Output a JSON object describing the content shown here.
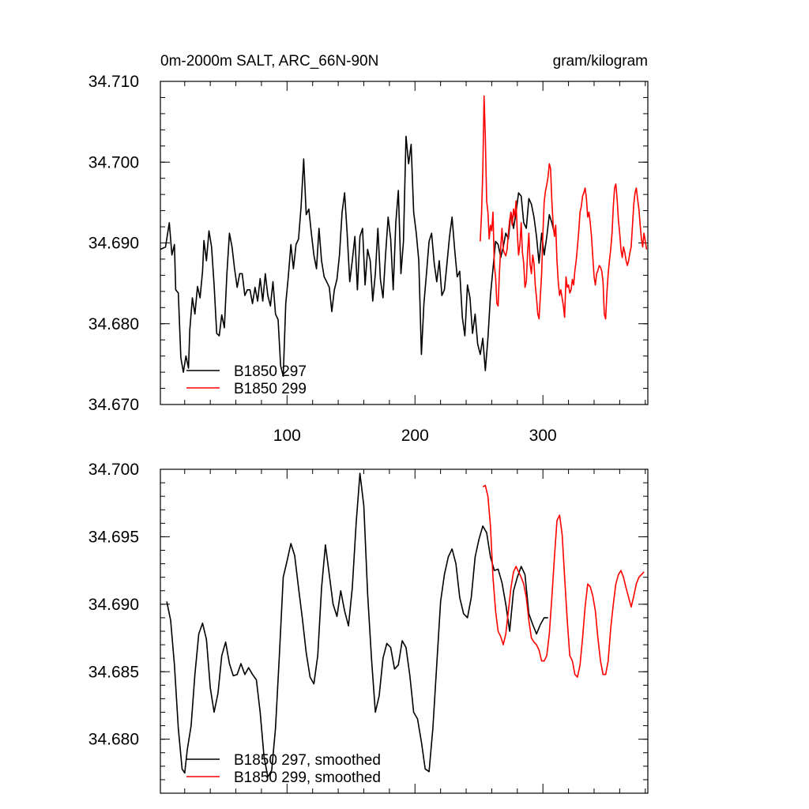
{
  "chart_data": [
    {
      "type": "line",
      "title_left": "0m-2000m SALT, ARC_66N-90N",
      "title_right": "gram/kilogram",
      "xlim": [
        1,
        382
      ],
      "ylim": [
        34.67,
        34.71
      ],
      "yticks": [
        "34.670",
        "34.680",
        "34.690",
        "34.700",
        "34.710"
      ],
      "ytick_values": [
        34.67,
        34.68,
        34.69,
        34.7,
        34.71
      ],
      "xticks": [
        "100",
        "200",
        "300"
      ],
      "xtick_values": [
        100,
        200,
        300
      ],
      "legend_position": "bottom-left",
      "series": [
        {
          "name": "B1850 297",
          "color": "#000000",
          "x": [
            1,
            5,
            8,
            10,
            12,
            13,
            15,
            17,
            19,
            21,
            23,
            24,
            26,
            28,
            30,
            32,
            34,
            35,
            37,
            39,
            41,
            43,
            45,
            47,
            49,
            51,
            53,
            55,
            57,
            59,
            61,
            63,
            65,
            67,
            69,
            71,
            73,
            75,
            77,
            79,
            81,
            83,
            85,
            87,
            89,
            91,
            93,
            95,
            97,
            99,
            101,
            103,
            105,
            107,
            109,
            111,
            113,
            115,
            117,
            119,
            121,
            123,
            125,
            127,
            129,
            131,
            133,
            135,
            137,
            139,
            141,
            143,
            145,
            147,
            149,
            151,
            153,
            155,
            157,
            159,
            161,
            163,
            165,
            167,
            169,
            171,
            173,
            175,
            177,
            179,
            181,
            183,
            185,
            187,
            189,
            191,
            193,
            195,
            197,
            199,
            201,
            203,
            205,
            207,
            209,
            211,
            213,
            215,
            217,
            219,
            221,
            223,
            225,
            227,
            229,
            231,
            233,
            235,
            237,
            239,
            241,
            243,
            245,
            247,
            249,
            251,
            253,
            255,
            257,
            259,
            261,
            263,
            265,
            267,
            269,
            271,
            273,
            275,
            277,
            279,
            281,
            283,
            285,
            287,
            289,
            291,
            293,
            295,
            297,
            299,
            301,
            303,
            305,
            307,
            309
          ],
          "values": [
            34.6892,
            34.6895,
            34.6925,
            34.6885,
            34.6898,
            34.6842,
            34.6838,
            34.6758,
            34.674,
            34.676,
            34.6745,
            34.6792,
            34.6832,
            34.6812,
            34.6846,
            34.6832,
            34.6865,
            34.6903,
            34.6878,
            34.6915,
            34.6895,
            34.6848,
            34.6788,
            34.6785,
            34.6811,
            34.6795,
            34.6862,
            34.6912,
            34.6895,
            34.6868,
            34.6845,
            34.6862,
            34.6862,
            34.6835,
            34.6842,
            34.6842,
            34.6825,
            34.6845,
            34.6828,
            34.6856,
            34.6828,
            34.6862,
            34.6835,
            34.6822,
            34.6852,
            34.6812,
            34.6805,
            34.6748,
            34.6735,
            34.6825,
            34.6858,
            34.6898,
            34.6868,
            34.6898,
            34.6905,
            34.6945,
            34.7004,
            34.6935,
            34.6942,
            34.6912,
            34.6885,
            34.6868,
            34.6918,
            34.6878,
            34.6858,
            34.6852,
            34.6845,
            34.6815,
            34.6842,
            34.6855,
            34.6885,
            34.6938,
            34.6962,
            34.6912,
            34.6852,
            34.6878,
            34.6908,
            34.6842,
            34.6908,
            34.6918,
            34.6848,
            34.6892,
            34.6878,
            34.6828,
            34.6862,
            34.6918,
            34.6855,
            34.6832,
            34.6885,
            34.6932,
            34.6905,
            34.6842,
            34.6925,
            34.6965,
            34.6862,
            34.6902,
            34.7032,
            34.6998,
            34.7022,
            34.6938,
            34.6912,
            34.6878,
            34.6762,
            34.6825,
            34.6862,
            34.6902,
            34.6912,
            34.6875,
            34.6852,
            34.6878,
            34.6835,
            34.6842,
            34.6875,
            34.6908,
            34.6932,
            34.6892,
            34.6858,
            34.6865,
            34.6808,
            34.6785,
            34.6848,
            34.6832,
            34.6788,
            34.6812,
            34.6775,
            34.6762,
            34.6782,
            34.6742,
            34.6782,
            34.6835,
            34.6868,
            34.6902,
            34.6898,
            34.6882,
            34.6895,
            34.6912,
            34.6905,
            34.6938,
            34.6918,
            34.6938,
            34.6962,
            34.6958,
            34.6925,
            34.6918,
            34.6955,
            34.6948,
            34.6932,
            34.6908,
            34.6875,
            34.6912,
            34.6885,
            34.6908,
            34.6935,
            34.6925,
            34.6912
          ]
        },
        {
          "name": "B1850 299",
          "color": "#ff0000",
          "x": [
            251,
            252,
            253,
            254,
            255,
            256,
            257,
            258,
            259,
            260,
            261,
            262,
            263,
            264,
            265,
            266,
            267,
            268,
            269,
            270,
            271,
            272,
            273,
            274,
            275,
            276,
            277,
            278,
            279,
            280,
            281,
            282,
            283,
            284,
            285,
            286,
            287,
            288,
            289,
            290,
            291,
            292,
            293,
            294,
            295,
            296,
            297,
            298,
            299,
            300,
            301,
            302,
            303,
            304,
            305,
            306,
            307,
            308,
            309,
            310,
            311,
            312,
            313,
            314,
            315,
            316,
            317,
            318,
            319,
            320,
            321,
            322,
            323,
            324,
            325,
            326,
            327,
            328,
            329,
            330,
            331,
            332,
            333,
            334,
            335,
            336,
            337,
            338,
            339,
            340,
            341,
            342,
            343,
            344,
            345,
            346,
            347,
            348,
            349,
            350,
            351,
            352,
            353,
            354,
            355,
            356,
            357,
            358,
            359,
            360,
            361,
            362,
            363,
            364,
            365,
            366,
            367,
            368,
            369,
            370,
            371,
            372,
            373,
            374,
            375,
            376,
            377,
            378,
            379,
            380,
            381
          ],
          "values": [
            34.6902,
            34.6936,
            34.6988,
            34.7082,
            34.7032,
            34.6952,
            34.6938,
            34.6905,
            34.6922,
            34.6915,
            34.6938,
            34.6872,
            34.6858,
            34.6825,
            34.6822,
            34.6862,
            34.6895,
            34.6918,
            34.6892,
            34.6887,
            34.6884,
            34.6892,
            34.6912,
            34.6928,
            34.6938,
            34.6922,
            34.6942,
            34.6932,
            34.6952,
            34.6912,
            34.6885,
            34.6898,
            34.6925,
            34.6888,
            34.6875,
            34.6845,
            34.6852,
            34.6888,
            34.6912,
            34.6874,
            34.6862,
            34.6885,
            34.6875,
            34.6848,
            34.6832,
            34.6812,
            34.6806,
            34.6835,
            34.6862,
            34.6912,
            34.6951,
            34.6964,
            34.6972,
            34.6982,
            34.6998,
            34.6992,
            34.6952,
            34.6922,
            34.6908,
            34.6922,
            34.6878,
            34.6852,
            34.6835,
            34.6842,
            34.6832,
            34.6822,
            34.6808,
            34.6858,
            34.6845,
            34.6848,
            34.6838,
            34.6842,
            34.6855,
            34.6848,
            34.6866,
            34.6878,
            34.6895,
            34.6915,
            34.6938,
            34.6945,
            34.6958,
            34.6962,
            34.6968,
            34.6955,
            34.6932,
            34.6938,
            34.6925,
            34.6908,
            34.6882,
            34.6858,
            34.6848,
            34.6862,
            34.6866,
            34.6872,
            34.687,
            34.6865,
            34.6852,
            34.6812,
            34.6806,
            34.6838,
            34.6862,
            34.6878,
            34.6892,
            34.6912,
            34.6945,
            34.6968,
            34.6973,
            34.6955,
            34.6928,
            34.6912,
            34.6892,
            34.6882,
            34.6895,
            34.6888,
            34.6878,
            34.6872,
            34.6878,
            34.6888,
            34.6895,
            34.6922,
            34.6948,
            34.6962,
            34.6968,
            34.6955,
            34.6942,
            34.6922,
            34.6905,
            34.6895,
            34.6912,
            34.6902,
            34.6892
          ]
        }
      ]
    },
    {
      "type": "line",
      "xlim": [
        1,
        382
      ],
      "ylim": [
        34.676,
        34.7
      ],
      "yticks": [
        "34.680",
        "34.685",
        "34.690",
        "34.695",
        "34.700"
      ],
      "ytick_values": [
        34.68,
        34.685,
        34.69,
        34.695,
        34.7
      ],
      "legend_position": "bottom-left",
      "series": [
        {
          "name": "B1850 297, smoothed",
          "color": "#000000",
          "x": [
            6,
            9,
            12,
            15,
            18,
            20,
            22,
            25,
            28,
            31,
            34,
            37,
            40,
            43,
            46,
            49,
            52,
            55,
            58,
            61,
            64,
            67,
            70,
            73,
            76,
            79,
            82,
            85,
            88,
            91,
            94,
            97,
            100,
            103,
            106,
            109,
            112,
            115,
            118,
            121,
            124,
            127,
            130,
            133,
            136,
            139,
            142,
            145,
            148,
            151,
            154,
            157,
            160,
            163,
            166,
            169,
            172,
            175,
            178,
            181,
            184,
            187,
            190,
            193,
            196,
            199,
            202,
            205,
            208,
            211,
            214,
            217,
            220,
            223,
            226,
            229,
            232,
            235,
            238,
            241,
            244,
            247,
            250,
            253,
            256,
            259,
            262,
            265,
            268,
            271,
            274,
            277,
            280,
            283,
            286,
            289,
            292,
            295,
            298,
            301,
            304
          ],
          "values": [
            34.6902,
            34.6888,
            34.6855,
            34.6808,
            34.6778,
            34.6775,
            34.6792,
            34.681,
            34.6848,
            34.6878,
            34.6886,
            34.6874,
            34.6838,
            34.682,
            34.6834,
            34.6862,
            34.6872,
            34.6856,
            34.6847,
            34.6848,
            34.6856,
            34.6848,
            34.6853,
            34.6848,
            34.6844,
            34.682,
            34.6787,
            34.6772,
            34.6777,
            34.6808,
            34.6862,
            34.692,
            34.6932,
            34.6945,
            34.6936,
            34.6912,
            34.6889,
            34.6864,
            34.6846,
            34.6841,
            34.6862,
            34.6912,
            34.6944,
            34.6922,
            34.69,
            34.6891,
            34.691,
            34.6895,
            34.6884,
            34.6912,
            34.696,
            34.6997,
            34.6973,
            34.6908,
            34.686,
            34.682,
            34.6832,
            34.686,
            34.6871,
            34.6868,
            34.6852,
            34.6855,
            34.6873,
            34.6868,
            34.6847,
            34.682,
            34.6815,
            34.6798,
            34.6778,
            34.6776,
            34.6808,
            34.6855,
            34.6902,
            34.6922,
            34.6935,
            34.6941,
            34.693,
            34.6905,
            34.6893,
            34.689,
            34.6905,
            34.6935,
            34.6948,
            34.6958,
            34.6953,
            34.6935,
            34.6925,
            34.6926,
            34.6916,
            34.69,
            34.688,
            34.691,
            34.692,
            34.6928,
            34.6922,
            34.6893,
            34.6885,
            34.6878,
            34.6885,
            34.689,
            34.689
          ]
        },
        {
          "name": "B1850 299, smoothed",
          "color": "#ff0000",
          "x": [
            253,
            255,
            257,
            259,
            261,
            263,
            265,
            267,
            269,
            271,
            273,
            275,
            277,
            279,
            281,
            283,
            285,
            287,
            289,
            291,
            293,
            295,
            297,
            299,
            301,
            303,
            305,
            307,
            309,
            311,
            313,
            315,
            317,
            319,
            321,
            323,
            325,
            327,
            329,
            331,
            333,
            335,
            337,
            339,
            341,
            343,
            345,
            347,
            349,
            351,
            353,
            355,
            357,
            359,
            361,
            363,
            365,
            367,
            369,
            371,
            373,
            375,
            377,
            379
          ],
          "values": [
            34.6987,
            34.6988,
            34.698,
            34.6958,
            34.692,
            34.6895,
            34.688,
            34.6876,
            34.687,
            34.6878,
            34.6895,
            34.6912,
            34.6924,
            34.6928,
            34.6924,
            34.692,
            34.6915,
            34.6905,
            34.6888,
            34.6875,
            34.6872,
            34.687,
            34.6866,
            34.6858,
            34.6858,
            34.6862,
            34.6878,
            34.6905,
            34.6935,
            34.6962,
            34.6966,
            34.6952,
            34.692,
            34.6888,
            34.6862,
            34.6858,
            34.6848,
            34.6846,
            34.6855,
            34.6875,
            34.6898,
            34.6915,
            34.6913,
            34.6906,
            34.6895,
            34.6875,
            34.6858,
            34.6848,
            34.6848,
            34.6858,
            34.6882,
            34.69,
            34.6915,
            34.6922,
            34.6925,
            34.692,
            34.6912,
            34.6905,
            34.6898,
            34.6906,
            34.6915,
            34.692,
            34.6922,
            34.6924
          ]
        }
      ]
    }
  ]
}
